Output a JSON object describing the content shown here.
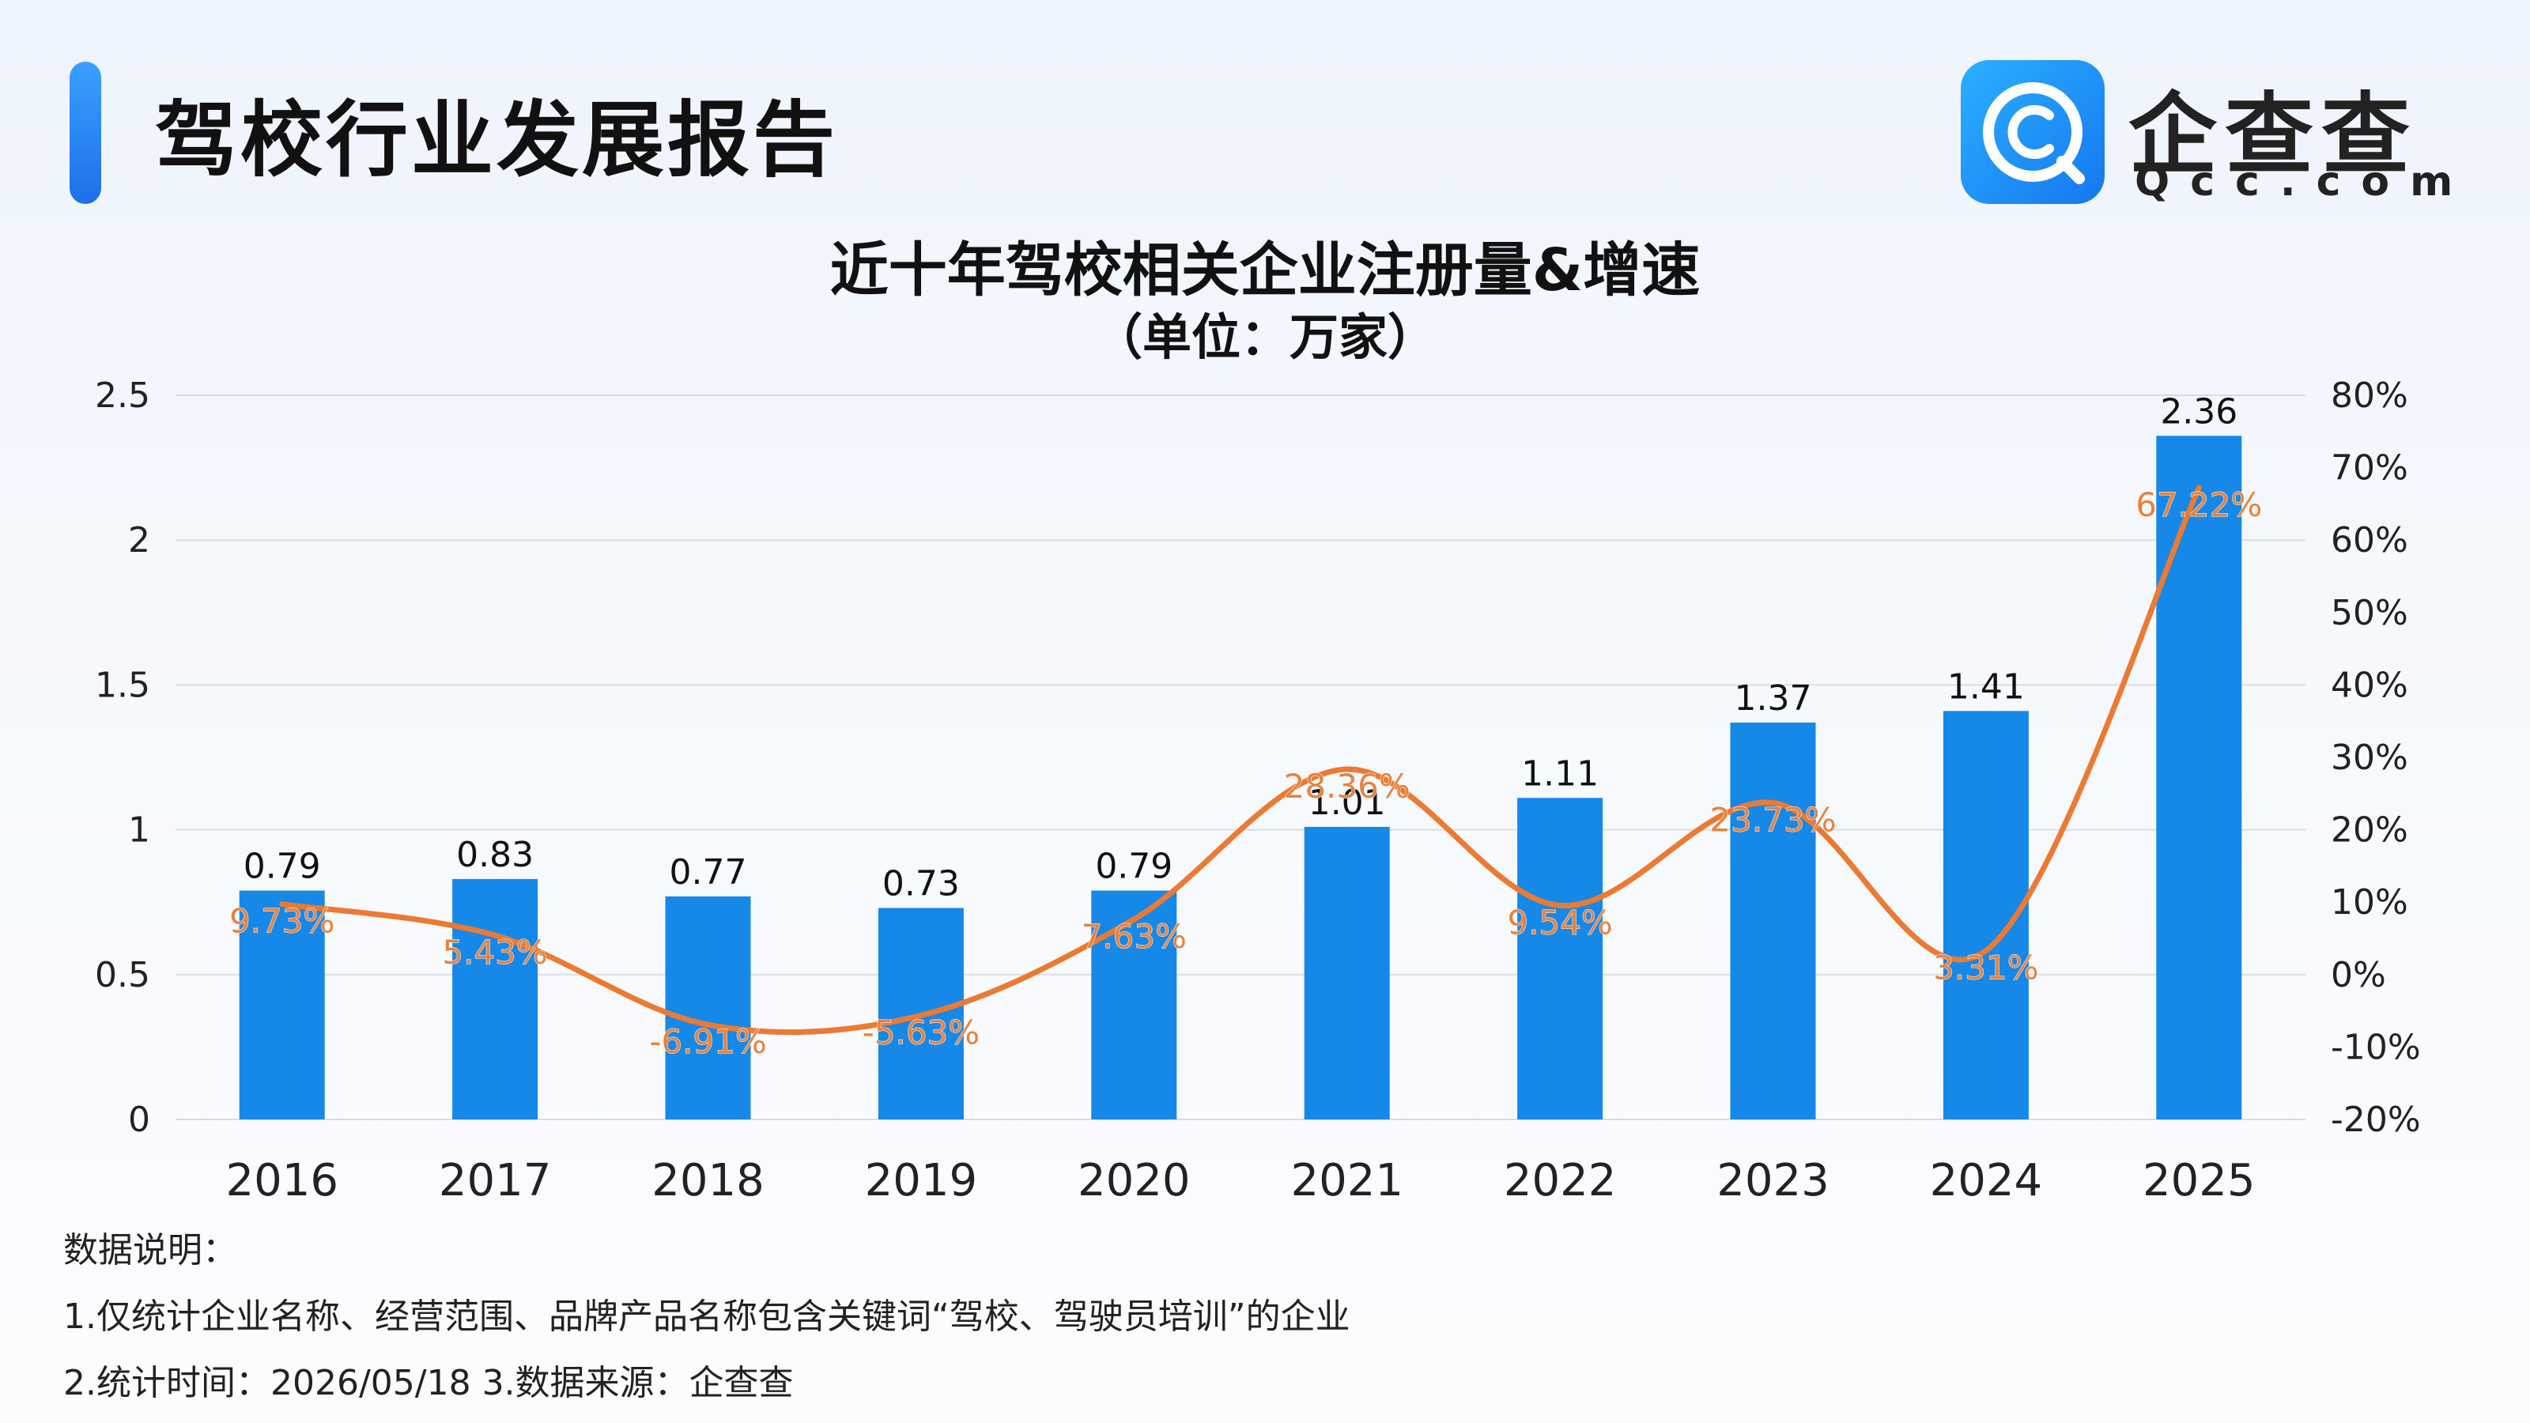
{
  "header": {
    "title": "驾校行业发展报告",
    "brand_name": "企查查",
    "brand_domain": "Qcc.com",
    "logo_icon": "qcc-logo-icon"
  },
  "colors": {
    "accent": "#1e6fe8",
    "bar": "#1688e8",
    "line": "#ec7a33",
    "growth_label": "#e8823e",
    "grid": "#d9dde3"
  },
  "chart_data": {
    "type": "bar",
    "title": "近十年驾校相关企业注册量&增速",
    "subtitle": "（单位：万家）",
    "categories": [
      "2016",
      "2017",
      "2018",
      "2019",
      "2020",
      "2021",
      "2022",
      "2023",
      "2024",
      "2025"
    ],
    "series": [
      {
        "type": "bar",
        "axis": "left",
        "values": [
          0.79,
          0.83,
          0.77,
          0.73,
          0.79,
          1.01,
          1.11,
          1.37,
          1.41,
          2.36
        ],
        "labels": [
          "0.79",
          "0.83",
          "0.77",
          "0.73",
          "0.79",
          "1.01",
          "1.11",
          "1.37",
          "1.41",
          "2.36"
        ]
      },
      {
        "type": "line",
        "axis": "right",
        "smooth": true,
        "values": [
          9.73,
          5.43,
          -6.91,
          -5.63,
          7.63,
          28.36,
          9.54,
          23.73,
          3.31,
          67.22
        ],
        "labels": [
          "9.73%",
          "5.43%",
          "-6.91%",
          "-5.63%",
          "7.63%",
          "28.36%",
          "9.54%",
          "23.73%",
          "3.31%",
          "67.22%"
        ]
      }
    ],
    "y_left": {
      "min": 0,
      "max": 2.5,
      "ticks": [
        "0",
        "0.5",
        "1",
        "1.5",
        "2",
        "2.5"
      ]
    },
    "y_right": {
      "min": -20,
      "max": 80,
      "ticks": [
        "-20%",
        "-10%",
        "0%",
        "10%",
        "20%",
        "30%",
        "40%",
        "50%",
        "60%",
        "70%",
        "80%"
      ]
    },
    "grid": true,
    "legend": "none"
  },
  "notes": {
    "heading": "数据说明：",
    "line1": "1.仅统计企业名称、经营范围、品牌产品名称包含关键词“驾校、驾驶员培训”的企业",
    "line2": "2.统计时间：2026/05/18    3.数据来源：企查查"
  }
}
